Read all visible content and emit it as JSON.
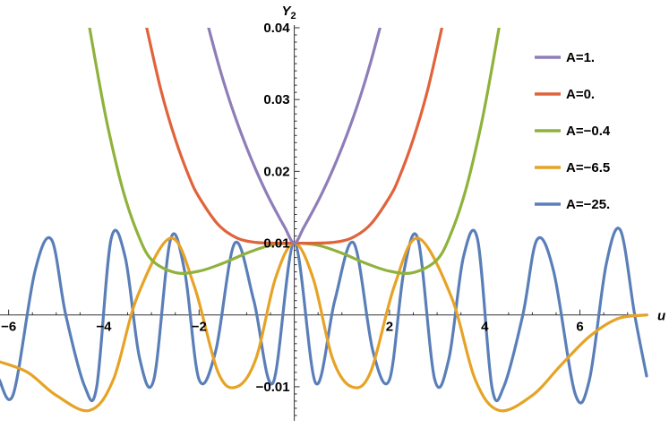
{
  "chart_data": {
    "type": "line",
    "title": "",
    "xlabel": "u",
    "ylabel": "Y",
    "ylabel_sub": "2",
    "xlim": [
      -6.2,
      7.4
    ],
    "ylim": [
      -0.0145,
      0.04
    ],
    "grid": false,
    "legend_position": "right",
    "x_ticks": [
      {
        "value": -6,
        "label": "-6"
      },
      {
        "value": -4,
        "label": "-4"
      },
      {
        "value": -2,
        "label": "-2"
      },
      {
        "value": 2,
        "label": "2"
      },
      {
        "value": 4,
        "label": "4"
      },
      {
        "value": 6,
        "label": "6"
      }
    ],
    "y_ticks": [
      {
        "value": -0.01,
        "label": "-0.01"
      },
      {
        "value": 0.01,
        "label": "0.01"
      },
      {
        "value": 0.02,
        "label": "0.02"
      },
      {
        "value": 0.03,
        "label": "0.03"
      },
      {
        "value": 0.04,
        "label": "0.04"
      }
    ],
    "series": [
      {
        "name": "A=1.",
        "color": "#8f7db8",
        "x": [
          -1.8,
          -1.6,
          -1.4,
          -1.2,
          -1.0,
          -0.8,
          -0.6,
          -0.4,
          -0.2,
          0,
          0.2,
          0.4,
          0.6,
          0.8,
          1.0,
          1.2,
          1.4,
          1.6,
          1.8
        ],
        "y": [
          0.04,
          0.0351,
          0.0307,
          0.0268,
          0.0233,
          0.0201,
          0.0172,
          0.0146,
          0.0122,
          0.01,
          0.0122,
          0.0146,
          0.0172,
          0.0201,
          0.0233,
          0.0268,
          0.0307,
          0.0351,
          0.04
        ]
      },
      {
        "name": "A=0.",
        "color": "#e0633b",
        "x": [
          -3.1,
          -2.8,
          -2.5,
          -2.2,
          -2.0,
          -1.6,
          -1.2,
          -0.8,
          -0.4,
          0,
          0.4,
          0.8,
          1.2,
          1.6,
          2.0,
          2.2,
          2.5,
          2.8,
          3.1
        ],
        "y": [
          0.04,
          0.0313,
          0.0245,
          0.0191,
          0.0164,
          0.0126,
          0.0107,
          0.0101,
          0.01,
          0.01,
          0.01,
          0.0101,
          0.0107,
          0.0126,
          0.0164,
          0.0191,
          0.0245,
          0.0313,
          0.04
        ]
      },
      {
        "name": "A=-0.4",
        "color": "#8fb23c",
        "x": [
          -4.3,
          -4.1,
          -3.9,
          -3.6,
          -3.3,
          -3.0,
          -2.5,
          -2.0,
          -1.5,
          -1.0,
          -0.5,
          0,
          0.5,
          1.0,
          1.5,
          2.0,
          2.5,
          3.0,
          3.3,
          3.6,
          3.9,
          4.1,
          4.3
        ],
        "y": [
          0.04,
          0.0325,
          0.0257,
          0.0174,
          0.0115,
          0.0077,
          0.0059,
          0.0061,
          0.0072,
          0.0086,
          0.0097,
          0.01,
          0.0097,
          0.0086,
          0.0072,
          0.0061,
          0.0059,
          0.0077,
          0.0115,
          0.0174,
          0.0257,
          0.0325,
          0.04
        ]
      },
      {
        "name": "A=-6.5",
        "color": "#e6a325",
        "x": [
          -6.2,
          -5.6,
          -5.0,
          -4.3,
          -3.8,
          -3.3,
          -2.6,
          -2.1,
          -1.6,
          -1.2,
          -0.8,
          -0.4,
          0,
          0.4,
          0.8,
          1.2,
          1.6,
          2.1,
          2.6,
          3.3,
          3.8,
          4.3,
          5.0,
          5.6,
          6.2,
          6.8,
          7.4
        ],
        "y": [
          -0.0065,
          -0.008,
          -0.0112,
          -0.0133,
          -0.009,
          0.0025,
          0.0107,
          0.004,
          -0.008,
          -0.01,
          -0.006,
          0.005,
          0.01,
          0.005,
          -0.006,
          -0.01,
          -0.008,
          0.004,
          0.0107,
          0.0025,
          -0.009,
          -0.0133,
          -0.0112,
          -0.007,
          -0.003,
          -0.0005,
          0.0
        ]
      },
      {
        "name": "A=-25.",
        "color": "#5a7fb8",
        "x": [
          -6.2,
          -5.9,
          -5.45,
          -5.1,
          -4.8,
          -4.4,
          -4.15,
          -3.85,
          -3.55,
          -3.25,
          -2.95,
          -2.6,
          -2.3,
          -2.0,
          -1.65,
          -1.25,
          -0.85,
          -0.45,
          0,
          0.45,
          0.85,
          1.25,
          1.65,
          2.0,
          2.3,
          2.6,
          2.95,
          3.25,
          3.55,
          3.85,
          4.15,
          4.4,
          4.8,
          5.1,
          5.45,
          5.9,
          6.2,
          6.55,
          6.85,
          7.15,
          7.4
        ],
        "y": [
          -0.009,
          -0.011,
          0.006,
          0.0105,
          0.0,
          -0.01,
          -0.01,
          0.0105,
          0.008,
          -0.006,
          -0.009,
          0.0105,
          0.006,
          -0.009,
          -0.005,
          0.01,
          0.002,
          -0.0095,
          0.01,
          -0.0095,
          0.002,
          0.01,
          -0.005,
          -0.009,
          0.006,
          0.0105,
          -0.009,
          -0.006,
          0.008,
          0.0105,
          -0.01,
          -0.01,
          0.0,
          0.0105,
          0.006,
          -0.011,
          -0.009,
          0.007,
          0.0118,
          0.0,
          -0.0085
        ]
      }
    ]
  }
}
